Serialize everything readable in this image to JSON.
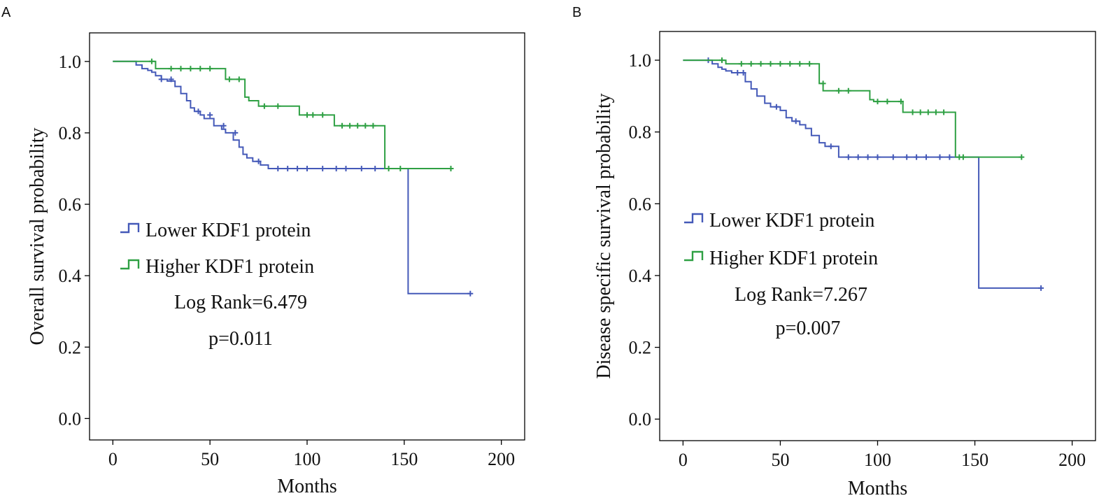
{
  "chart_data": [
    {
      "type": "line",
      "panel_label": "A",
      "title": "",
      "xlabel": "Months",
      "ylabel": "Overall survival probability",
      "xlim": [
        -12,
        212
      ],
      "ylim": [
        -0.06,
        1.08
      ],
      "xticks": [
        0,
        50,
        100,
        150,
        200
      ],
      "yticks": [
        0.0,
        0.2,
        0.4,
        0.6,
        0.8,
        1.0
      ],
      "ytick_labels": [
        "0.0",
        "0.2",
        "0.4",
        "0.6",
        "0.8",
        "1.0"
      ],
      "series": [
        {
          "name": "Lower KDF1 protein",
          "color": "#4459b8",
          "x": [
            0,
            12,
            15,
            18,
            20,
            22,
            25,
            28,
            32,
            35,
            38,
            40,
            42,
            45,
            47,
            52,
            56,
            58,
            62,
            65,
            67,
            69,
            72,
            76,
            80,
            152,
            184
          ],
          "y": [
            1.0,
            0.99,
            0.98,
            0.975,
            0.97,
            0.96,
            0.95,
            0.945,
            0.93,
            0.91,
            0.89,
            0.87,
            0.86,
            0.85,
            0.84,
            0.82,
            0.81,
            0.8,
            0.78,
            0.76,
            0.74,
            0.73,
            0.72,
            0.71,
            0.7,
            0.35,
            0.35
          ],
          "censor_x": [
            25,
            30,
            44,
            50,
            57,
            63,
            75,
            85,
            90,
            95,
            100,
            108,
            115,
            120,
            128,
            135,
            184
          ],
          "censor_y": [
            0.95,
            0.95,
            0.86,
            0.85,
            0.82,
            0.8,
            0.72,
            0.7,
            0.7,
            0.7,
            0.7,
            0.7,
            0.7,
            0.7,
            0.7,
            0.7,
            0.35
          ]
        },
        {
          "name": "Higher KDF1 protein",
          "color": "#2ea043",
          "x": [
            0,
            20,
            22,
            55,
            58,
            66,
            68,
            70,
            75,
            96,
            114,
            140,
            174
          ],
          "y": [
            1.0,
            1.0,
            0.98,
            0.98,
            0.95,
            0.95,
            0.9,
            0.89,
            0.875,
            0.85,
            0.82,
            0.7,
            0.7
          ],
          "censor_x": [
            20,
            30,
            35,
            40,
            45,
            50,
            60,
            65,
            78,
            85,
            100,
            103,
            108,
            118,
            122,
            126,
            130,
            134,
            142,
            148,
            174
          ],
          "censor_y": [
            1.0,
            0.98,
            0.98,
            0.98,
            0.98,
            0.98,
            0.95,
            0.95,
            0.875,
            0.875,
            0.85,
            0.85,
            0.85,
            0.82,
            0.82,
            0.82,
            0.82,
            0.82,
            0.7,
            0.7,
            0.7
          ]
        }
      ],
      "legend_position": "center-left",
      "annotations": [
        "Log Rank=6.479",
        "p=0.011"
      ]
    },
    {
      "type": "line",
      "panel_label": "B",
      "title": "",
      "xlabel": "Months",
      "ylabel": "Disease specific survival probability",
      "xlim": [
        -12,
        212
      ],
      "ylim": [
        -0.06,
        1.08
      ],
      "xticks": [
        0,
        50,
        100,
        150,
        200
      ],
      "yticks": [
        0.0,
        0.2,
        0.4,
        0.6,
        0.8,
        1.0
      ],
      "ytick_labels": [
        "0.0",
        "0.2",
        "0.4",
        "0.6",
        "0.8",
        "1.0"
      ],
      "series": [
        {
          "name": "Lower KDF1 protein",
          "color": "#4459b8",
          "x": [
            0,
            15,
            18,
            20,
            22,
            25,
            32,
            35,
            38,
            42,
            45,
            50,
            53,
            56,
            60,
            63,
            66,
            70,
            73,
            80,
            152,
            184
          ],
          "y": [
            1.0,
            0.99,
            0.98,
            0.975,
            0.97,
            0.965,
            0.94,
            0.92,
            0.9,
            0.88,
            0.87,
            0.86,
            0.84,
            0.83,
            0.82,
            0.81,
            0.79,
            0.77,
            0.76,
            0.73,
            0.365,
            0.365
          ],
          "censor_x": [
            13,
            28,
            31,
            48,
            58,
            76,
            85,
            90,
            95,
            100,
            108,
            115,
            120,
            125,
            132,
            137,
            184
          ],
          "censor_y": [
            1.0,
            0.965,
            0.965,
            0.87,
            0.83,
            0.76,
            0.73,
            0.73,
            0.73,
            0.73,
            0.73,
            0.73,
            0.73,
            0.73,
            0.73,
            0.73,
            0.365
          ]
        },
        {
          "name": "Higher KDF1 protein",
          "color": "#2ea043",
          "x": [
            0,
            20,
            22,
            68,
            70,
            72,
            96,
            98,
            113,
            140,
            174
          ],
          "y": [
            1.0,
            1.0,
            0.99,
            0.99,
            0.935,
            0.915,
            0.89,
            0.885,
            0.855,
            0.73,
            0.73
          ],
          "censor_x": [
            20,
            30,
            35,
            40,
            45,
            50,
            55,
            60,
            65,
            72,
            80,
            85,
            100,
            105,
            112,
            118,
            122,
            126,
            130,
            134,
            142,
            144,
            174
          ],
          "censor_y": [
            1.0,
            0.99,
            0.99,
            0.99,
            0.99,
            0.99,
            0.99,
            0.99,
            0.99,
            0.935,
            0.915,
            0.915,
            0.885,
            0.885,
            0.885,
            0.855,
            0.855,
            0.855,
            0.855,
            0.855,
            0.73,
            0.73,
            0.73
          ]
        }
      ],
      "legend_position": "center-left",
      "annotations": [
        "Log Rank=7.267",
        "p=0.007"
      ]
    }
  ]
}
